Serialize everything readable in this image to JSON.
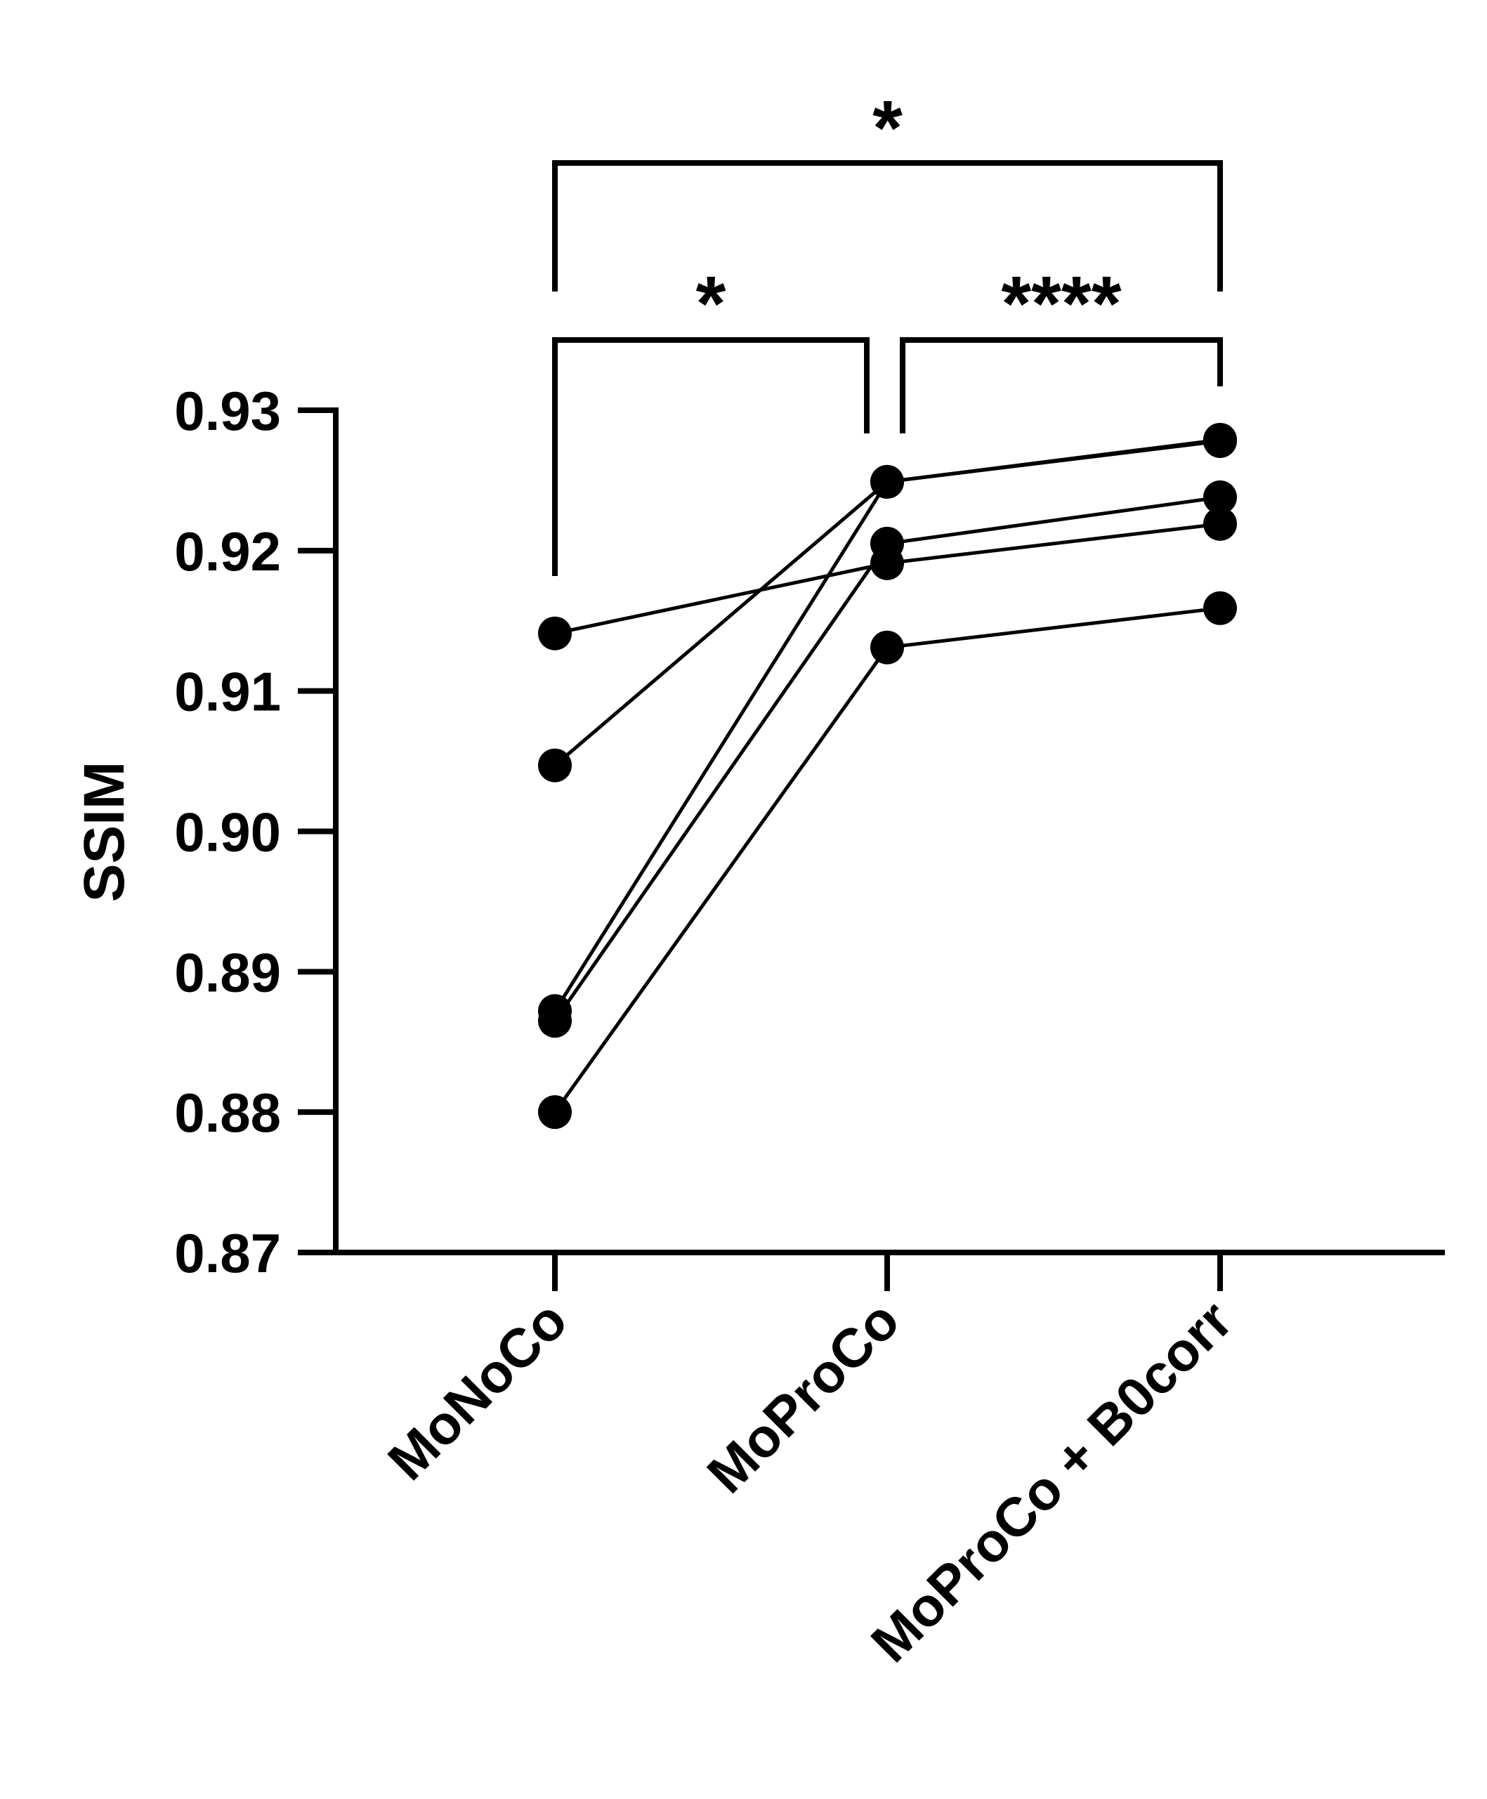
{
  "chart_data": {
    "type": "line",
    "ylabel": "SSIM",
    "ylim": [
      0.87,
      0.93
    ],
    "yticks": [
      0.87,
      0.88,
      0.89,
      0.9,
      0.91,
      0.92,
      0.93
    ],
    "ytick_labels": [
      "0.87",
      "0.88",
      "0.89",
      "0.90",
      "0.91",
      "0.92",
      "0.93"
    ],
    "categories": [
      "MoNoCo",
      "MoProCo",
      "MoProCo + B0corr"
    ],
    "grid": false,
    "legend": "none",
    "series": [
      {
        "values": [
          0.9141,
          0.9191,
          0.9219
        ]
      },
      {
        "values": [
          0.9047,
          0.9249,
          0.9279
        ]
      },
      {
        "values": [
          0.8872,
          0.9249,
          0.9278
        ]
      },
      {
        "values": [
          0.8865,
          0.9205,
          0.9238
        ]
      },
      {
        "values": [
          0.88,
          0.9131,
          0.9159
        ]
      }
    ],
    "significance": [
      {
        "from": 0,
        "to": 1,
        "label": "*"
      },
      {
        "from": 1,
        "to": 2,
        "label": "****"
      },
      {
        "from": 0,
        "to": 2,
        "label": "*"
      }
    ]
  },
  "style": {
    "line_color": "#000000",
    "marker_color": "#000000",
    "background": "#ffffff"
  }
}
